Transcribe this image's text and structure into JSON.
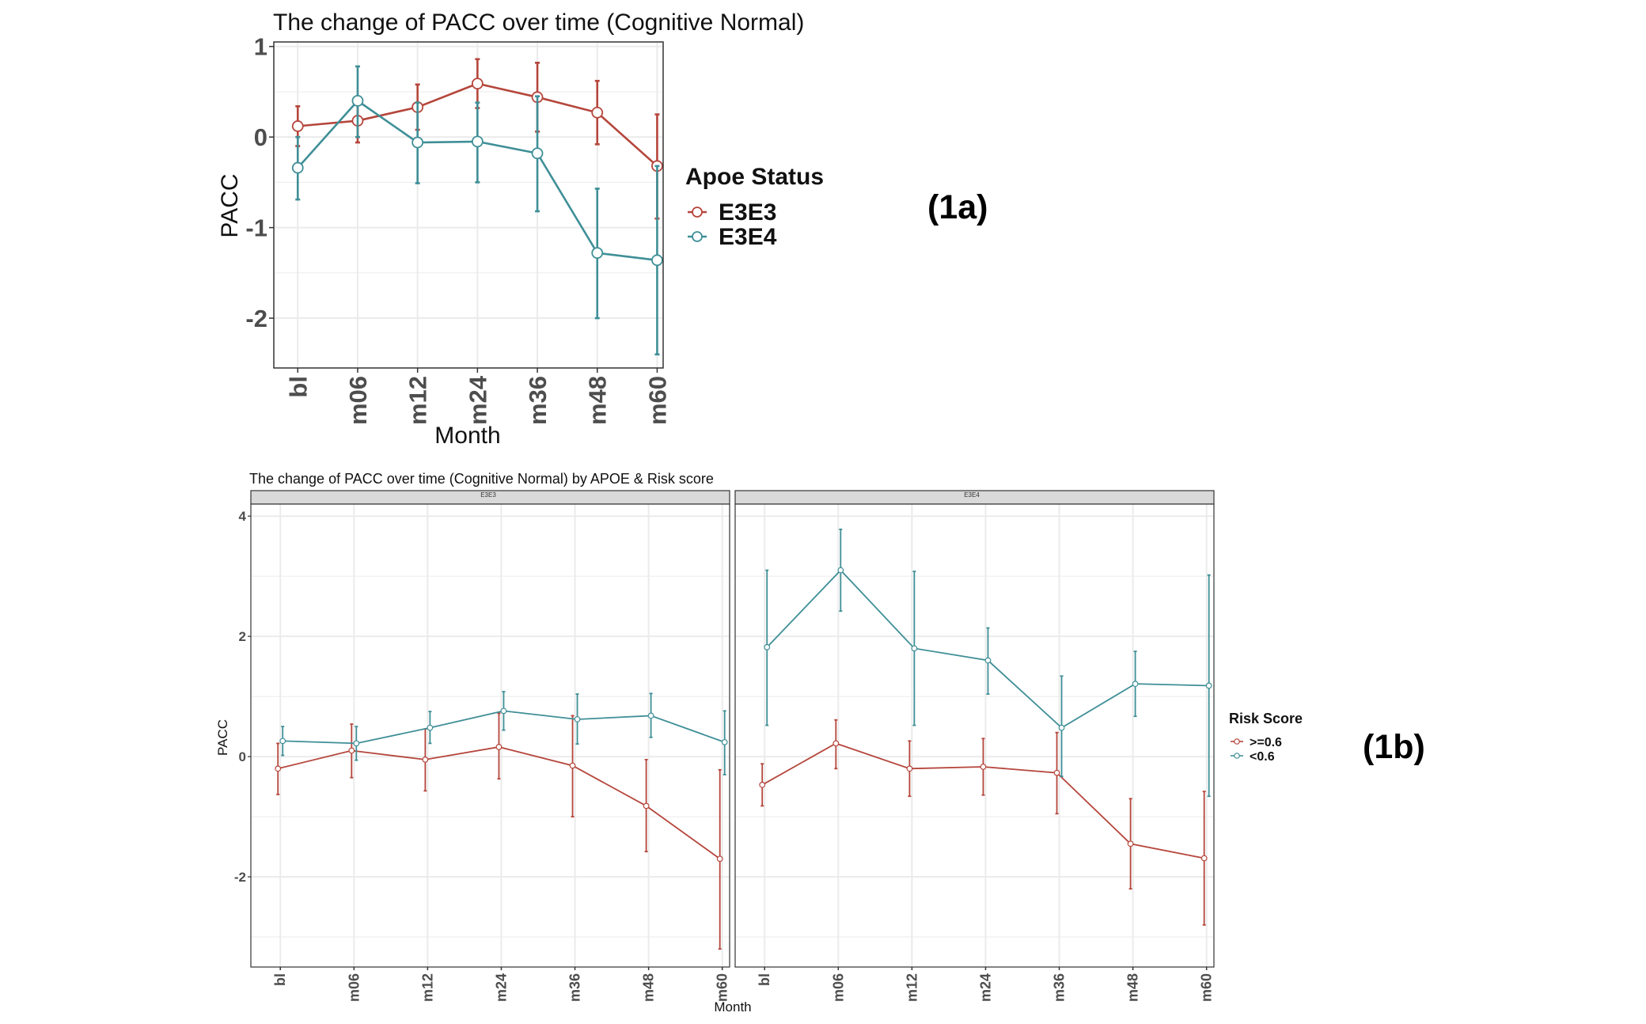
{
  "colors": {
    "red": "#b5463c",
    "teal": "#3f8f97",
    "grid": "#ebebeb",
    "border": "#333333",
    "strip": "#d9d9d9"
  },
  "chart_data": [
    {
      "id": "1a",
      "type": "line",
      "title": "The change of PACC over time (Cognitive Normal)",
      "xlabel": "Month",
      "ylabel": "PACC",
      "categories": [
        "bl",
        "m06",
        "m12",
        "m24",
        "m36",
        "m48",
        "m60"
      ],
      "yticks": [
        "1",
        "0",
        "-1",
        "-2"
      ],
      "ylim": [
        -2.55,
        1.05
      ],
      "legend": {
        "title": "Apoe Status",
        "position": "right"
      },
      "series": [
        {
          "name": "E3E3",
          "color": "#b5463c",
          "values": [
            0.12,
            0.18,
            0.33,
            0.59,
            0.44,
            0.27,
            -0.32
          ],
          "lower": [
            -0.1,
            -0.06,
            0.08,
            0.32,
            0.06,
            -0.08,
            -0.9
          ],
          "upper": [
            0.34,
            0.42,
            0.58,
            0.86,
            0.82,
            0.62,
            0.25
          ]
        },
        {
          "name": "E3E4",
          "color": "#3f8f97",
          "values": [
            -0.34,
            0.4,
            -0.06,
            -0.05,
            -0.18,
            -1.28,
            -1.36
          ],
          "lower": [
            -0.69,
            0.0,
            -0.51,
            -0.5,
            -0.82,
            -2.0,
            -2.4
          ],
          "upper": [
            0.0,
            0.78,
            0.38,
            0.38,
            0.45,
            -0.57,
            -0.32
          ]
        }
      ],
      "panel_label": "(1a)"
    },
    {
      "id": "1b",
      "type": "line",
      "title": "The change of PACC over time (Cognitive Normal) by APOE & Risk score",
      "xlabel": "Month",
      "ylabel": "PACC",
      "categories": [
        "bl",
        "m06",
        "m12",
        "m24",
        "m36",
        "m48",
        "m60"
      ],
      "yticks": [
        "4",
        "2",
        "0",
        "-2"
      ],
      "ylim": [
        -3.5,
        4.2
      ],
      "legend": {
        "title": "Risk Score",
        "position": "right"
      },
      "facets": [
        {
          "strip": "E3E3",
          "series": [
            {
              "name": ">=0.6",
              "color": "#b5463c",
              "values": [
                -0.2,
                0.1,
                -0.05,
                0.16,
                -0.15,
                -0.82,
                -1.7
              ],
              "lower": [
                -0.63,
                -0.35,
                -0.57,
                -0.37,
                -1.0,
                -1.58,
                -3.2
              ],
              "upper": [
                0.22,
                0.54,
                0.46,
                0.72,
                0.68,
                -0.05,
                -0.22
              ]
            },
            {
              "name": "<0.6",
              "color": "#3f8f97",
              "values": [
                0.26,
                0.22,
                0.48,
                0.76,
                0.62,
                0.68,
                0.24
              ],
              "lower": [
                0.02,
                -0.06,
                0.22,
                0.44,
                0.21,
                0.32,
                -0.3
              ],
              "upper": [
                0.5,
                0.5,
                0.75,
                1.08,
                1.04,
                1.05,
                0.76
              ]
            }
          ]
        },
        {
          "strip": "E3E4",
          "series": [
            {
              "name": ">=0.6",
              "color": "#b5463c",
              "values": [
                -0.47,
                0.22,
                -0.2,
                -0.17,
                -0.27,
                -1.45,
                -1.69
              ],
              "lower": [
                -0.82,
                -0.2,
                -0.66,
                -0.64,
                -0.95,
                -2.2,
                -2.8
              ],
              "upper": [
                -0.12,
                0.61,
                0.26,
                0.3,
                0.4,
                -0.7,
                -0.58
              ]
            },
            {
              "name": "<0.6",
              "color": "#3f8f97",
              "values": [
                1.82,
                3.1,
                1.8,
                1.6,
                0.48,
                1.21,
                1.18
              ],
              "lower": [
                0.52,
                2.42,
                0.52,
                1.04,
                -0.33,
                0.67,
                -0.66
              ],
              "upper": [
                3.1,
                3.78,
                3.08,
                2.14,
                1.34,
                1.75,
                3.02
              ]
            }
          ]
        }
      ],
      "panel_label": "(1b)"
    }
  ]
}
